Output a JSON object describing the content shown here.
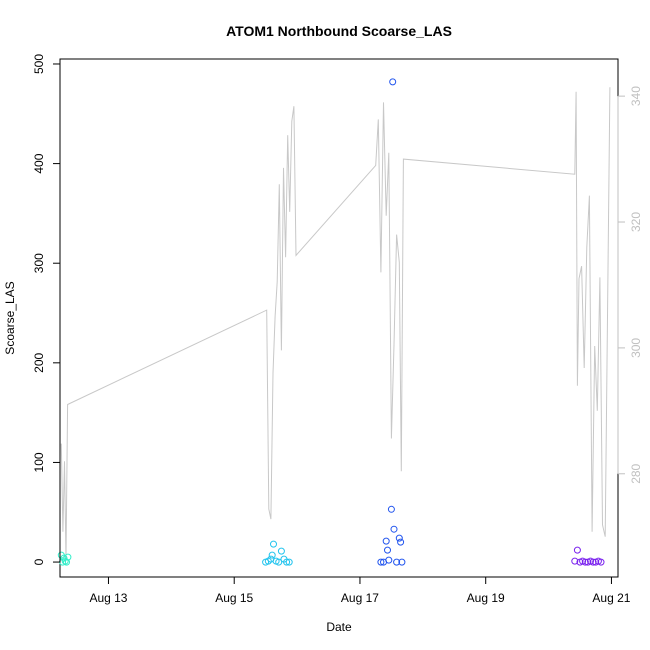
{
  "chart_data": {
    "type": "scatter",
    "title": "ATOM1 Northbound Scoarse_LAS",
    "xlabel": "Date",
    "ylabel": "Scoarse_LAS",
    "x_axis": {
      "unit": "date",
      "range": [
        "Aug 12 05:30",
        "Aug 21 02:30"
      ],
      "ticks": [
        "Aug 13",
        "Aug 15",
        "Aug 17",
        "Aug 19",
        "Aug 21"
      ]
    },
    "y_axis_left": {
      "range": [
        -15,
        505
      ],
      "ticks": [
        "0",
        "100",
        "200",
        "300",
        "400",
        "500"
      ]
    },
    "y_axis_right": {
      "range": [
        263.6,
        345.9
      ],
      "ticks": [
        "280",
        "300",
        "320",
        "340"
      ],
      "color": "#c0c0c0"
    },
    "grid": false,
    "legend": "none",
    "colors": {
      "line": "#c8c8c8",
      "aqua": "#33eec9",
      "cyan": "#22c4ee",
      "blue": "#2255ee",
      "purple": "#7a22ee"
    },
    "series": [
      {
        "color": "aqua",
        "x": [
          "Aug 12 06:00",
          "Aug 12 06:30",
          "Aug 12 07:00",
          "Aug 12 07:30",
          "Aug 12 08:00",
          "Aug 12 08:30"
        ],
        "y": [
          7,
          0,
          4,
          1,
          0,
          5
        ]
      },
      {
        "color": "cyan",
        "x": [
          "Aug 15 12:00",
          "Aug 15 13:00",
          "Aug 15 14:00",
          "Aug 15 14:30",
          "Aug 15 15:00",
          "Aug 15 16:00",
          "Aug 15 17:00",
          "Aug 15 18:00",
          "Aug 15 19:00",
          "Aug 15 20:00",
          "Aug 15 21:00"
        ],
        "y": [
          0,
          1,
          3,
          7,
          18,
          1,
          0,
          11,
          3,
          0,
          0
        ]
      },
      {
        "color": "blue",
        "x": [
          "Aug 17 08:00",
          "Aug 17 09:00",
          "Aug 17 10:00",
          "Aug 17 10:30",
          "Aug 17 11:00",
          "Aug 17 12:00",
          "Aug 17 12:30",
          "Aug 17 13:00",
          "Aug 17 14:00",
          "Aug 17 15:00",
          "Aug 17 15:30",
          "Aug 17 16:00"
        ],
        "y": [
          0,
          0,
          21,
          12,
          2,
          53,
          482,
          33,
          0,
          24,
          20,
          0
        ]
      },
      {
        "color": "purple",
        "x": [
          "Aug 20 10:00",
          "Aug 20 11:00",
          "Aug 20 12:00",
          "Aug 20 13:00",
          "Aug 20 14:00",
          "Aug 20 15:00",
          "Aug 20 16:00",
          "Aug 20 17:00",
          "Aug 20 18:00",
          "Aug 20 19:00",
          "Aug 20 20:00"
        ],
        "y": [
          1,
          12,
          0,
          1,
          0,
          0,
          1,
          0,
          0,
          1,
          0
        ]
      }
    ],
    "line_series": {
      "axis": "right",
      "x": [
        "Aug 12 06:00",
        "Aug 12 06:36",
        "Aug 12 07:12",
        "Aug 12 07:48",
        "Aug 12 08:24",
        "Aug 15 12:24",
        "Aug 15 13:12",
        "Aug 15 14:00",
        "Aug 15 14:48",
        "Aug 15 15:36",
        "Aug 15 16:24",
        "Aug 15 17:12",
        "Aug 15 18:00",
        "Aug 15 18:48",
        "Aug 15 19:36",
        "Aug 15 20:24",
        "Aug 15 21:12",
        "Aug 15 22:00",
        "Aug 15 22:48",
        "Aug 15 23:36",
        "Aug 17 06:00",
        "Aug 17 07:00",
        "Aug 17 08:00",
        "Aug 17 09:00",
        "Aug 17 10:00",
        "Aug 17 11:00",
        "Aug 17 12:00",
        "Aug 17 13:00",
        "Aug 17 14:00",
        "Aug 17 15:00",
        "Aug 17 15:48",
        "Aug 17 16:36",
        "Aug 20 10:00",
        "Aug 20 10:30",
        "Aug 20 11:00",
        "Aug 20 11:36",
        "Aug 20 12:36",
        "Aug 20 13:36",
        "Aug 20 14:36",
        "Aug 20 15:36",
        "Aug 20 16:36",
        "Aug 20 17:36",
        "Aug 20 18:36",
        "Aug 20 19:36",
        "Aug 20 20:36",
        "Aug 20 21:36",
        "Aug 20 23:24"
      ],
      "y": [
        284.8,
        270.8,
        282.0,
        266.4,
        291.0,
        306.0,
        274.4,
        272.8,
        296.0,
        305.0,
        310.5,
        326.0,
        299.6,
        328.6,
        314.4,
        333.8,
        321.6,
        336.0,
        338.4,
        314.7,
        329.0,
        336.3,
        312.0,
        339.0,
        321.0,
        331.0,
        285.6,
        300.5,
        318.0,
        313.6,
        280.4,
        330.0,
        327.6,
        340.7,
        294.0,
        311.0,
        313.0,
        296.8,
        316.0,
        324.2,
        270.8,
        300.3,
        290.0,
        311.2,
        271.9,
        270.0,
        341.4
      ]
    }
  }
}
